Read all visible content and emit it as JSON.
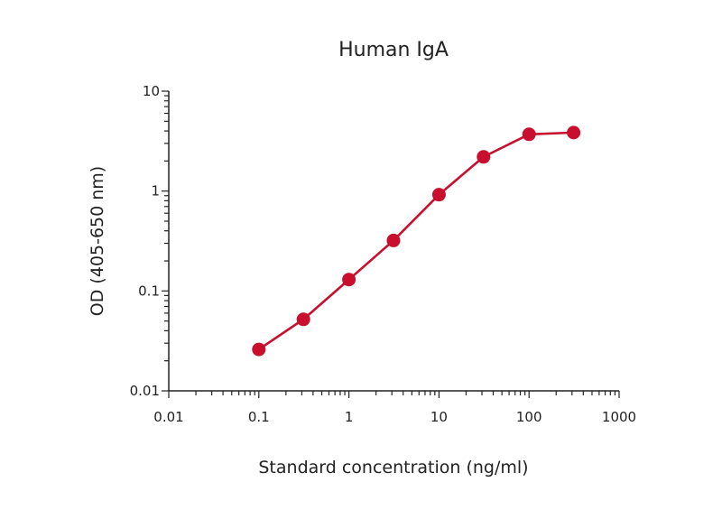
{
  "chart_data": {
    "type": "line",
    "title": "Human IgA",
    "xlabel": "Standard concentration (ng/ml)",
    "ylabel": "OD (405-650 nm)",
    "xscale": "log",
    "yscale": "log",
    "xlim": [
      0.01,
      1000
    ],
    "ylim": [
      0.01,
      10
    ],
    "x_ticks": [
      {
        "value": 0.01,
        "label": "0.01"
      },
      {
        "value": 0.1,
        "label": "0.1"
      },
      {
        "value": 1,
        "label": "1"
      },
      {
        "value": 10,
        "label": "10"
      },
      {
        "value": 100,
        "label": "100"
      },
      {
        "value": 1000,
        "label": "1000"
      }
    ],
    "y_ticks": [
      {
        "value": 0.01,
        "label": "0.01"
      },
      {
        "value": 0.1,
        "label": "0.1"
      },
      {
        "value": 1,
        "label": "1"
      },
      {
        "value": 10,
        "label": "10"
      }
    ],
    "grid": false,
    "legend": "none",
    "series": [
      {
        "color": "#c8102e",
        "marker": "circle",
        "x": [
          0.1,
          0.3125,
          1,
          3.125,
          10,
          31.25,
          100,
          312.5
        ],
        "y": [
          0.026,
          0.052,
          0.13,
          0.32,
          0.92,
          2.2,
          3.7,
          3.85
        ]
      }
    ]
  }
}
